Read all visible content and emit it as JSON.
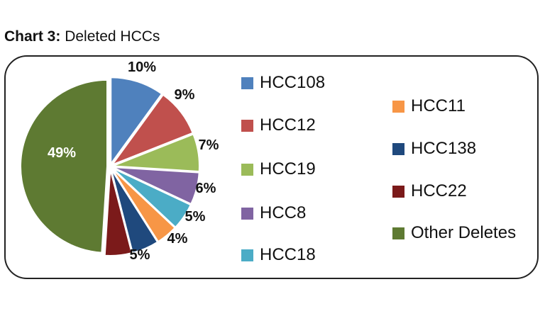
{
  "title": {
    "bold": "Chart 3:",
    "rest": "Deleted HCCs"
  },
  "chart_data": {
    "type": "pie",
    "categories": [
      "HCC108",
      "HCC12",
      "HCC19",
      "HCC8",
      "HCC18",
      "HCC11",
      "HCC138",
      "HCC22",
      "Other Deletes"
    ],
    "values": [
      10,
      9,
      7,
      6,
      5,
      4,
      5,
      5,
      49
    ],
    "labels": [
      "10%",
      "9%",
      "7%",
      "6%",
      "5%",
      "4%",
      "5%",
      "",
      "49%"
    ],
    "colors": [
      "#4F81BD",
      "#C0504D",
      "#9BBB59",
      "#8064A2",
      "#4BACC6",
      "#F79646",
      "#1F497D",
      "#7B1A1A",
      "#5E7A32"
    ],
    "legend_placement": "right"
  }
}
